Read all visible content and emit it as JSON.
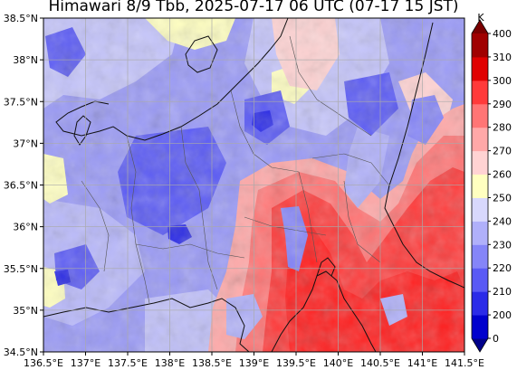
{
  "title": "Himawari 8/9 Tbb, 2025-07-17 06 UTC (07-17 15 JST)",
  "map": {
    "lon_range": [
      136.5,
      141.5
    ],
    "lat_range": [
      34.5,
      38.5
    ],
    "lon_ticks": [
      "136.5°E",
      "137°E",
      "137.5°E",
      "138°E",
      "138.5°E",
      "139°E",
      "139.5°E",
      "140°E",
      "140.5°E",
      "141°E",
      "141.5°E"
    ],
    "lat_ticks": [
      "38.5°N",
      "38°N",
      "37.5°N",
      "37°N",
      "36.5°N",
      "36°N",
      "35.5°N",
      "35°N",
      "34.5°N"
    ],
    "gridlines": true
  },
  "colorbar": {
    "unit": "K",
    "levels": [
      0,
      200,
      210,
      220,
      230,
      240,
      250,
      260,
      270,
      280,
      290,
      300,
      310,
      400
    ],
    "labels": [
      "400",
      "310",
      "300",
      "290",
      "280",
      "270",
      "260",
      "250",
      "240",
      "230",
      "220",
      "210",
      "200",
      "0"
    ],
    "colors": [
      "#00008b",
      "#0000cd",
      "#2b2be8",
      "#5a5af5",
      "#8585f8",
      "#b0b0fa",
      "#d8d8fc",
      "#ffffc0",
      "#ffd3d3",
      "#ffa8a8",
      "#ff7575",
      "#ff3a3a",
      "#e00000",
      "#a00000",
      "#7a0000"
    ]
  }
}
